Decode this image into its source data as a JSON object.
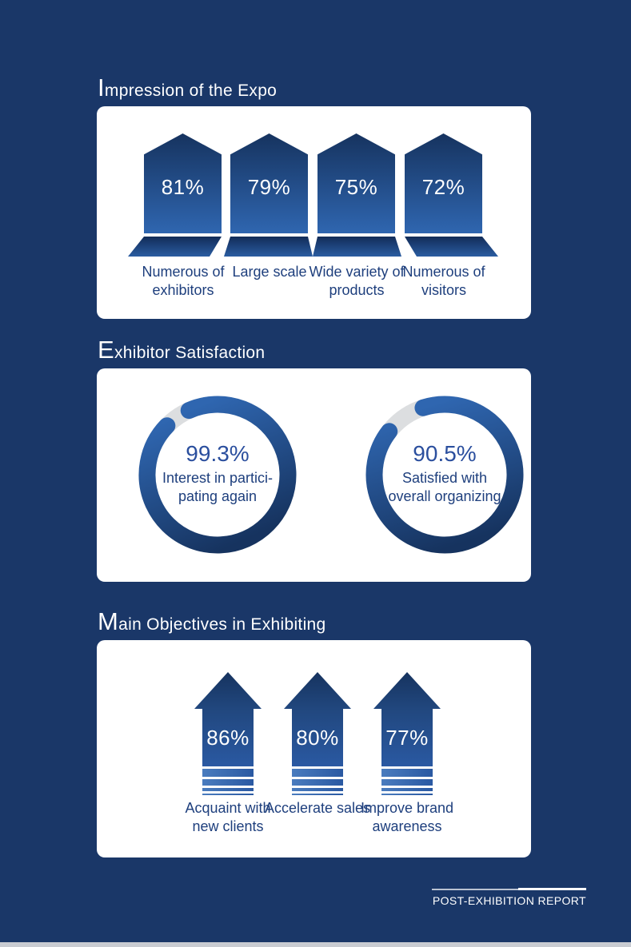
{
  "colors": {
    "page_bg": "#1a3768",
    "card_bg": "#ffffff",
    "title_text": "#ffffff",
    "value_text": "#ffffff",
    "label_text": "#1e3f7d",
    "donut_value_text": "#2b4f9e",
    "grad_dark": "#16335f",
    "grad_light": "#2f66b0",
    "track_gray": "#dcdee0",
    "bottom_strip": "#c9ccd2"
  },
  "sections": [
    {
      "id": "impression",
      "title_initial": "I",
      "title_rest": "mpression of the Expo",
      "items": [
        {
          "display": "81%",
          "label_line1": "Numerous of",
          "label_line2": "exhibitors"
        },
        {
          "display": "79%",
          "label_line1": "Large scale",
          "label_line2": ""
        },
        {
          "display": "75%",
          "label_line1": "Wide variety of",
          "label_line2": "products"
        },
        {
          "display": "72%",
          "label_line1": "Numerous of",
          "label_line2": "visitors"
        }
      ]
    },
    {
      "id": "satisfaction",
      "title_initial": "E",
      "title_rest": "xhibitor Satisfaction",
      "items": [
        {
          "display": "99.3%",
          "label_line1": "Interest in partici-",
          "label_line2": "pating again"
        },
        {
          "display": "90.5%",
          "label_line1": "Satisfied with",
          "label_line2": "overall organizing"
        }
      ]
    },
    {
      "id": "objectives",
      "title_initial": "M",
      "title_rest": "ain Objectives in Exhibiting",
      "items": [
        {
          "display": "86%",
          "label_line1": "Acquaint with",
          "label_line2": "new clients"
        },
        {
          "display": "80%",
          "label_line1": "Accelerate sales",
          "label_line2": ""
        },
        {
          "display": "77%",
          "label_line1": "Improve brand",
          "label_line2": "awareness"
        }
      ]
    }
  ],
  "footer": {
    "label": "POST-EXHIBITION REPORT"
  },
  "chart_data": [
    {
      "type": "bar",
      "title": "Impression of the Expo",
      "categories": [
        "Numerous of exhibitors",
        "Large scale",
        "Wide variety of products",
        "Numerous of visitors"
      ],
      "values": [
        81,
        79,
        75,
        72
      ],
      "unit": "%",
      "style": "pentagon/house pictogram bars with value labels inside",
      "ylim": [
        0,
        100
      ]
    },
    {
      "type": "pie",
      "title": "Exhibitor Satisfaction",
      "categories": [
        "Interest in participating again",
        "Satisfied with overall organizing"
      ],
      "values": [
        99.3,
        90.5
      ],
      "unit": "%",
      "style": "two donut gauges, gray remainder gap at upper-left, value and label in center"
    },
    {
      "type": "bar",
      "title": "Main Objectives in Exhibiting",
      "categories": [
        "Acquaint with new clients",
        "Accelerate sales",
        "Improve brand awareness"
      ],
      "values": [
        86,
        80,
        77
      ],
      "unit": "%",
      "style": "upward arrow pictogram bars with fading stripes at base",
      "ylim": [
        0,
        100
      ]
    }
  ]
}
